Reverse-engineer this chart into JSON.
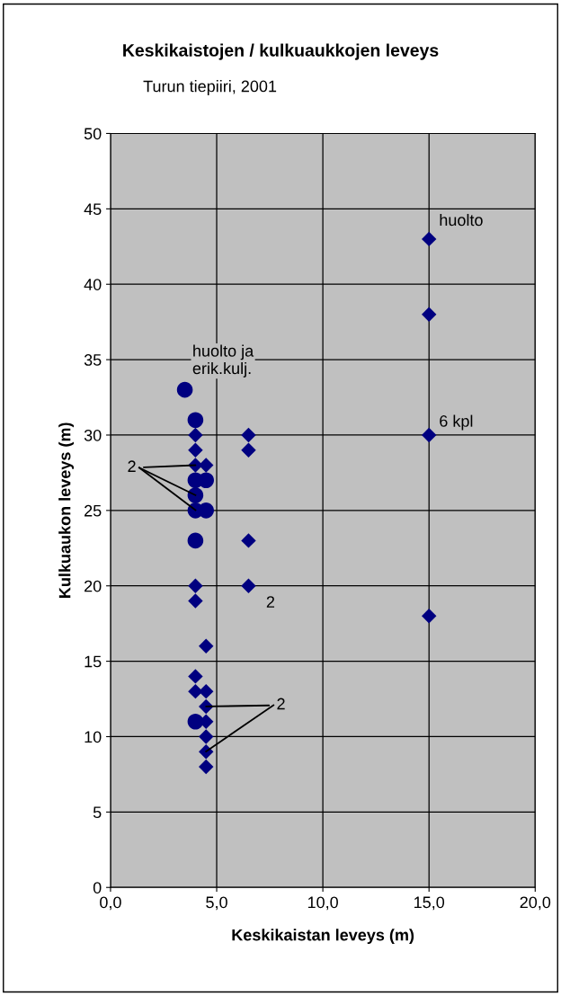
{
  "chart_data": {
    "type": "scatter",
    "title": "Keskikaistojen / kulkuaukkojen leveys",
    "subtitle": "Turun tiepiiri, 2001",
    "xlabel": "Keskikaistan leveys (m)",
    "ylabel": "Kulkuaukon leveys (m)",
    "xlim": [
      0,
      20
    ],
    "ylim": [
      0,
      50
    ],
    "xticks": [
      {
        "value": 0,
        "label": "0,0"
      },
      {
        "value": 5,
        "label": "5,0"
      },
      {
        "value": 10,
        "label": "10,0"
      },
      {
        "value": 15,
        "label": "15,0"
      },
      {
        "value": 20,
        "label": "20,0"
      }
    ],
    "yticks": [
      0,
      5,
      10,
      15,
      20,
      25,
      30,
      35,
      40,
      45,
      50
    ],
    "grid": true,
    "legend": false,
    "series": [
      {
        "color": "#000080",
        "marker": "diamond",
        "x": [
          4,
          4,
          4,
          4,
          4,
          4,
          4,
          4.5,
          4.5,
          4.5,
          4.5,
          4.5,
          4.5,
          4.5,
          4.5,
          6.5,
          6.5,
          6.5,
          6.5,
          15,
          15,
          15,
          15
        ],
        "values": [
          30,
          29,
          28,
          20,
          19,
          14,
          13,
          28,
          16,
          13,
          12,
          11,
          10,
          9,
          8,
          30,
          29,
          23,
          20,
          43,
          38,
          30,
          18
        ]
      },
      {
        "color": "#000080",
        "marker": "circle",
        "x": [
          3.5,
          4,
          4,
          4.5,
          4,
          4,
          4.5,
          4,
          4
        ],
        "values": [
          33,
          31,
          27,
          27,
          26,
          25,
          25,
          23,
          11
        ]
      }
    ],
    "annotations": [
      {
        "text": "huolto",
        "x": 15,
        "y": 43
      },
      {
        "text": "6 kpl",
        "x": 15,
        "y": 30
      },
      {
        "text": "huolto ja\nerik.kulj.",
        "x": 3.5,
        "y": 33
      },
      {
        "text": "2",
        "x": 6.5,
        "y": 20
      },
      {
        "text": "2",
        "x": 4,
        "y": 28
      },
      {
        "text": "2",
        "x": 4.5,
        "y": 12
      }
    ]
  }
}
